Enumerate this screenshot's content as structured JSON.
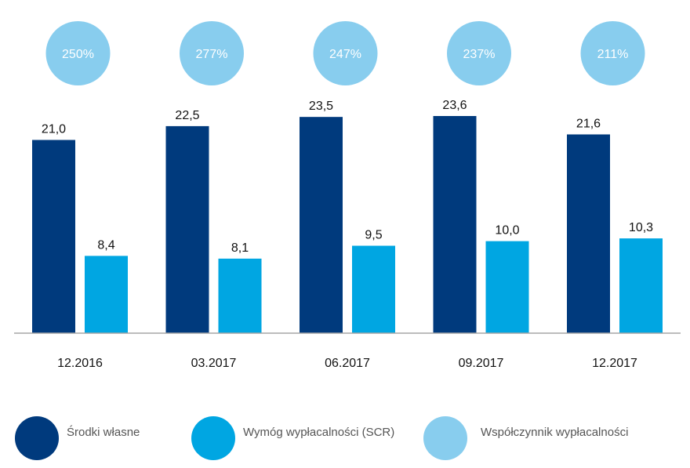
{
  "chart_data": {
    "type": "bar",
    "categories": [
      "12.2016",
      "03.2017",
      "06.2017",
      "09.2017",
      "12.2017"
    ],
    "series": [
      {
        "name": "Środki własne",
        "values": [
          21.0,
          22.5,
          23.5,
          23.6,
          21.6
        ],
        "labels": [
          "21,0",
          "22,5",
          "23,5",
          "23,6",
          "21,6"
        ],
        "color": "#003a7d"
      },
      {
        "name": "Wymóg wypłacalności (SCR)",
        "values": [
          8.4,
          8.1,
          9.5,
          10.0,
          10.3
        ],
        "labels": [
          "8,4",
          "8,1",
          "9,5",
          "10,0",
          "10,3"
        ],
        "color": "#00a6e2"
      },
      {
        "name": "Współczynnik wypłacalności",
        "values": [
          250,
          277,
          247,
          237,
          211
        ],
        "labels": [
          "250%",
          "277%",
          "247%",
          "237%",
          "211%"
        ],
        "color": "#88cdee"
      }
    ],
    "ylim": [
      0,
      23.6
    ],
    "grid": false,
    "legend": "bottom",
    "xlabel": "",
    "ylabel": "",
    "title": ""
  }
}
